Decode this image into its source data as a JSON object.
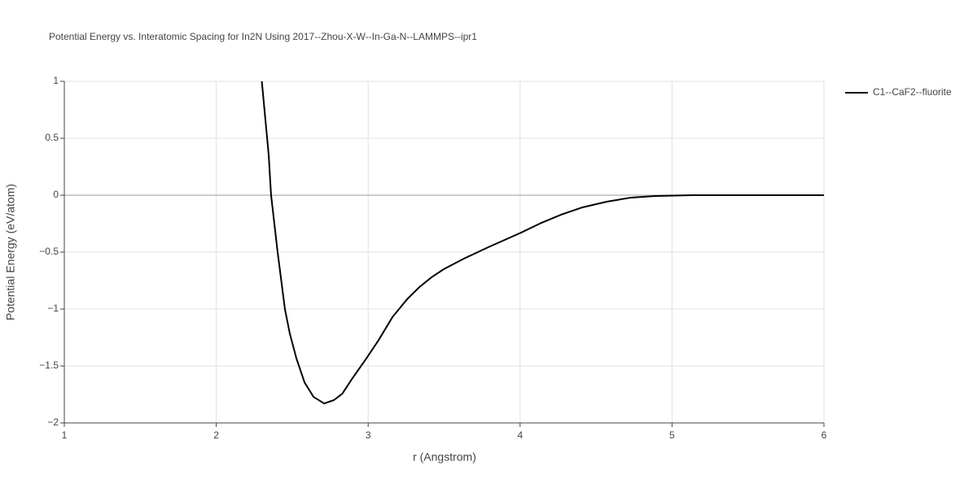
{
  "chart_data": {
    "type": "line",
    "title": "Potential Energy vs. Interatomic Spacing for In2N Using 2017--Zhou-X-W--In-Ga-N--LAMMPS--ipr1",
    "x_label": "r (Angstrom)",
    "y_label": "Potential Energy (eV/atom)",
    "x": [
      2.3,
      2.345,
      2.361,
      2.404,
      2.452,
      2.484,
      2.527,
      2.581,
      2.64,
      2.71,
      2.774,
      2.83,
      2.89,
      2.99,
      3.07,
      3.16,
      3.256,
      3.337,
      3.417,
      3.497,
      3.63,
      3.79,
      4.006,
      4.14,
      4.27,
      4.41,
      4.57,
      4.73,
      4.89,
      5.13,
      6.0
    ],
    "series": [
      {
        "name": "C1--CaF2--fluorite",
        "color": "#000000",
        "values": [
          1.0,
          0.357,
          0.0,
          -0.5,
          -1.0,
          -1.214,
          -1.43,
          -1.643,
          -1.771,
          -1.829,
          -1.8,
          -1.743,
          -1.62,
          -1.43,
          -1.27,
          -1.07,
          -0.914,
          -0.807,
          -0.721,
          -0.65,
          -0.557,
          -0.457,
          -0.329,
          -0.243,
          -0.171,
          -0.107,
          -0.057,
          -0.021,
          -0.007,
          0.0,
          0.0
        ]
      }
    ],
    "xlim": [
      1,
      6
    ],
    "xticks": [
      1,
      2,
      3,
      4,
      5,
      6
    ],
    "ylim": [
      -2,
      1
    ],
    "yticks": [
      {
        "value": -2,
        "label": "−2"
      },
      {
        "value": -1.5,
        "label": "−1.5"
      },
      {
        "value": -1,
        "label": "−1"
      },
      {
        "value": -0.5,
        "label": "−0.5"
      },
      0,
      0.5,
      1
    ],
    "grid": true,
    "legend": "top-right"
  }
}
